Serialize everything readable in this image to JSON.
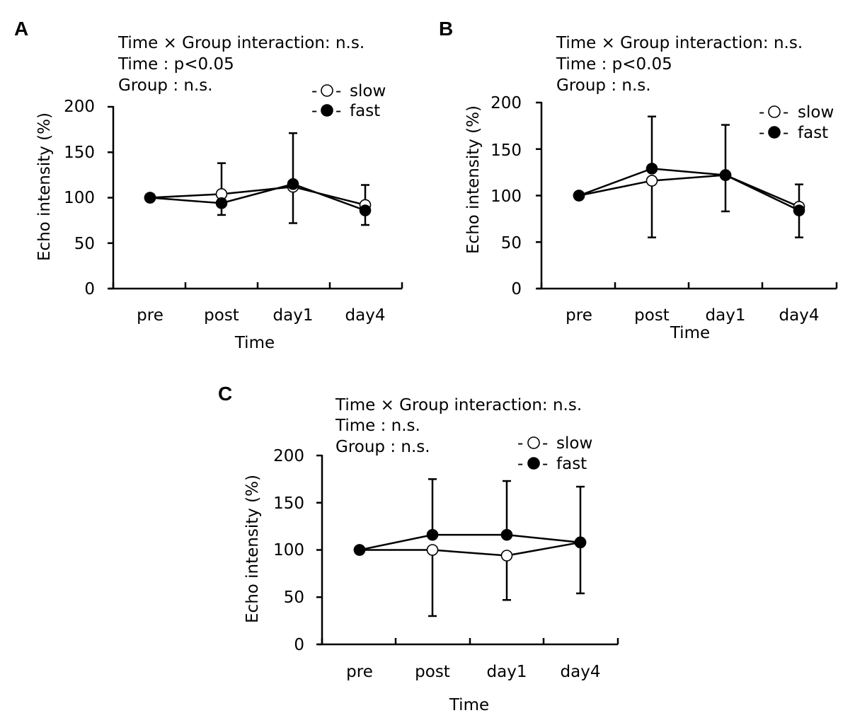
{
  "chart_data": [
    {
      "type": "line",
      "panel": "A",
      "stats": [
        "Time × Group interaction: n.s.",
        "Time : p<0.05",
        "Group : n.s."
      ],
      "categories": [
        "pre",
        "post",
        "day1",
        "day4"
      ],
      "xlabel": "Time",
      "ylabel": "Echo intensity (%)",
      "ylim": [
        0,
        200
      ],
      "yticks": [
        "0",
        "50",
        "100",
        "150",
        "200"
      ],
      "legend": [
        "slow",
        "fast"
      ],
      "legend_position": "top-right",
      "series": [
        {
          "name": "slow",
          "marker": "open-circle",
          "values": [
            100,
            104,
            112,
            92
          ],
          "error_up": [
            0,
            34,
            59,
            22
          ],
          "error_down": [
            0,
            0,
            0,
            0
          ]
        },
        {
          "name": "fast",
          "marker": "filled-circle",
          "values": [
            100,
            94,
            115,
            86
          ],
          "error_up": [
            0,
            0,
            0,
            0
          ],
          "error_down": [
            0,
            13,
            43,
            16
          ]
        }
      ]
    },
    {
      "type": "line",
      "panel": "B",
      "stats": [
        "Time × Group interaction: n.s.",
        "Time : p<0.05",
        "Group : n.s."
      ],
      "categories": [
        "pre",
        "post",
        "day1",
        "day4"
      ],
      "xlabel": "Time",
      "ylabel": "Echo intensity (%)",
      "ylim": [
        0,
        200
      ],
      "yticks": [
        "0",
        "50",
        "100",
        "150",
        "200"
      ],
      "legend": [
        "slow",
        "fast"
      ],
      "legend_position": "top-right",
      "series": [
        {
          "name": "slow",
          "marker": "open-circle",
          "values": [
            100,
            116,
            122,
            88
          ],
          "error_up": [
            0,
            0,
            0,
            0
          ],
          "error_down": [
            0,
            61,
            0,
            0
          ]
        },
        {
          "name": "fast",
          "marker": "filled-circle",
          "values": [
            100,
            129,
            122,
            84
          ],
          "error_up": [
            0,
            56,
            54,
            28
          ],
          "error_down": [
            0,
            0,
            39,
            29
          ]
        }
      ]
    },
    {
      "type": "line",
      "panel": "C",
      "stats": [
        "Time × Group interaction: n.s.",
        "Time : n.s.",
        "Group : n.s."
      ],
      "categories": [
        "pre",
        "post",
        "day1",
        "day4"
      ],
      "xlabel": "Time",
      "ylabel": "Echo intensity (%)",
      "ylim": [
        0,
        200
      ],
      "yticks": [
        "0",
        "50",
        "100",
        "150",
        "200"
      ],
      "legend": [
        "slow",
        "fast"
      ],
      "legend_position": "top-right",
      "series": [
        {
          "name": "slow",
          "marker": "open-circle",
          "values": [
            100,
            100,
            94,
            108
          ],
          "error_up": [
            0,
            0,
            0,
            0
          ],
          "error_down": [
            0,
            70,
            47,
            0
          ]
        },
        {
          "name": "fast",
          "marker": "filled-circle",
          "values": [
            100,
            116,
            116,
            108
          ],
          "error_up": [
            0,
            59,
            57,
            59
          ],
          "error_down": [
            0,
            0,
            0,
            54
          ]
        }
      ]
    }
  ]
}
